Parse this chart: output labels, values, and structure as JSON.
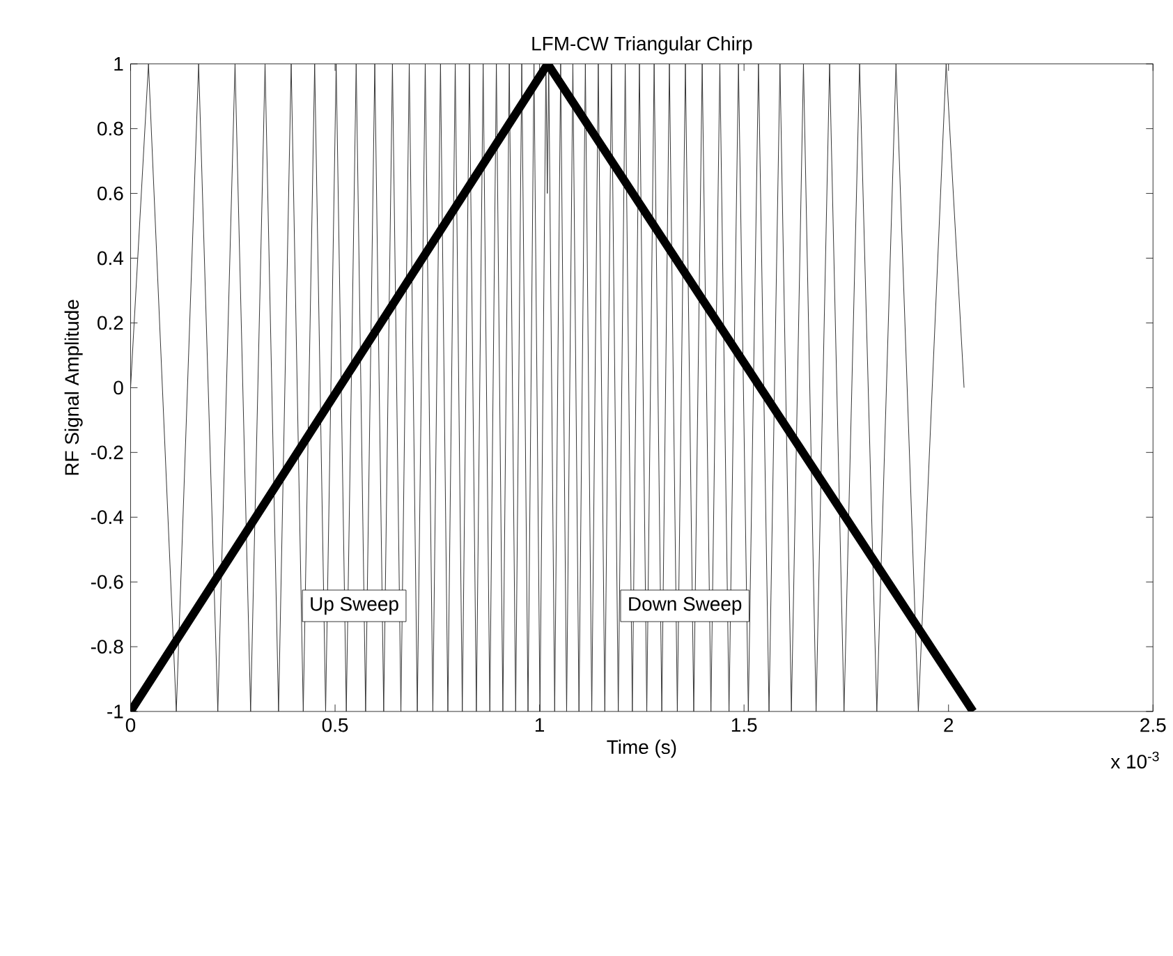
{
  "chart_data": {
    "type": "line",
    "title": "LFM-CW Triangular Chirp",
    "xlabel": "Time (s)",
    "ylabel": "RF Signal Amplitude",
    "xlim": [
      0,
      2.5
    ],
    "ylim": [
      -1,
      1
    ],
    "xticks": [
      0,
      0.5,
      1,
      1.5,
      2,
      2.5
    ],
    "yticks": [
      -1,
      -0.8,
      -0.6,
      -0.4,
      -0.2,
      0,
      0.2,
      0.4,
      0.6,
      0.8,
      1
    ],
    "grid": false,
    "marker": "none",
    "line_style": "solid",
    "series": [
      {
        "color": "#333333",
        "x": [
          0,
          0.0438,
          0.1118,
          0.1664,
          0.2133,
          0.2554,
          0.2935,
          0.3288,
          0.3618,
          0.3927,
          0.4222,
          0.4501,
          0.4769,
          0.5027,
          0.5275,
          0.5516,
          0.5747,
          0.5971,
          0.6189,
          0.6403,
          0.661,
          0.6814,
          0.7011,
          0.7205,
          0.7391,
          0.7578,
          0.7758,
          0.7938,
          0.8111,
          0.8285,
          0.8455,
          0.8621,
          0.8784,
          0.8944,
          0.9103,
          0.926,
          0.9416,
          0.9565,
          0.9718,
          0.9864,
          1.001,
          1.0156,
          1.019,
          1.0224,
          1.037,
          1.0516,
          1.0662,
          1.0815,
          1.0964,
          1.112,
          1.1277,
          1.1436,
          1.1596,
          1.1759,
          1.1925,
          1.2095,
          1.2269,
          1.2442,
          1.2622,
          1.2802,
          1.2989,
          1.3175,
          1.3369,
          1.3566,
          1.377,
          1.3977,
          1.4191,
          1.4409,
          1.4633,
          1.4864,
          1.5105,
          1.5353,
          1.5611,
          1.5879,
          1.6158,
          1.6453,
          1.6762,
          1.7092,
          1.7445,
          1.7826,
          1.8247,
          1.8716,
          1.9262,
          1.9942,
          2.038
        ],
        "values": [
          0,
          1,
          -1,
          1,
          -1,
          1,
          -1,
          1,
          -1,
          1,
          -1,
          1,
          -1,
          1,
          -1,
          1,
          -1,
          1,
          -1,
          1,
          -1,
          1,
          -1,
          1,
          -1,
          1,
          -1,
          1,
          -1,
          1,
          -1,
          1,
          -1,
          1,
          -1,
          1,
          -1,
          1,
          -1,
          1,
          -1,
          1,
          0.6,
          1,
          -1,
          1,
          -1,
          1,
          -1,
          1,
          -1,
          1,
          -1,
          1,
          -1,
          1,
          -1,
          1,
          -1,
          1,
          -1,
          1,
          -1,
          1,
          -1,
          1,
          -1,
          1,
          -1,
          1,
          -1,
          1,
          -1,
          1,
          -1,
          1,
          -1,
          1,
          -1,
          1,
          -1,
          1,
          -1,
          1,
          0
        ]
      },
      {
        "color": "#000000",
        "x": [
          0,
          1.02,
          2.06
        ],
        "values": [
          -1,
          1,
          -1
        ]
      }
    ],
    "annotations": [
      "Up Sweep",
      "Down Sweep",
      "x 10$^{-3}$"
    ]
  }
}
